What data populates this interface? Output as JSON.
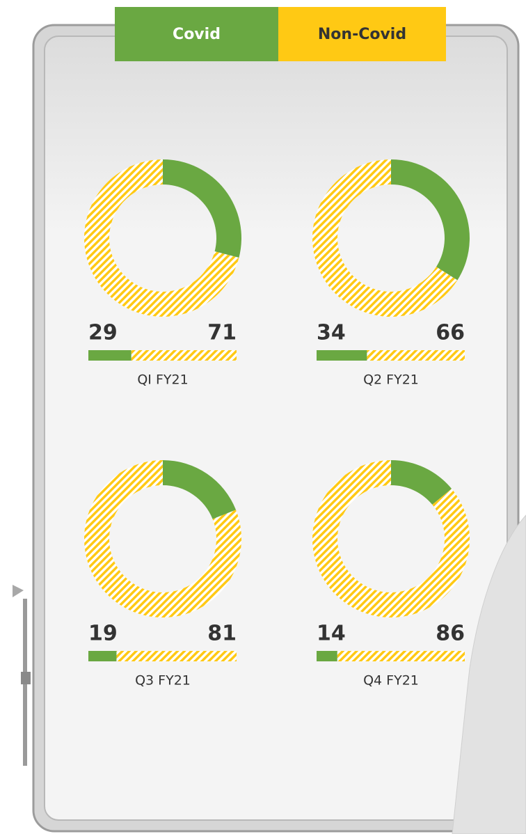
{
  "chart_data": {
    "type": "donut",
    "categories": [
      "QI FY21",
      "Q2 FY21",
      "Q3 FY21",
      "Q4 FY21"
    ],
    "series": [
      {
        "name": "Covid",
        "color": "#6aa842",
        "values": [
          29,
          34,
          19,
          14
        ]
      },
      {
        "name": "Non-Covid",
        "color": "#ffc914",
        "values": [
          71,
          66,
          81,
          86
        ]
      }
    ]
  }
}
